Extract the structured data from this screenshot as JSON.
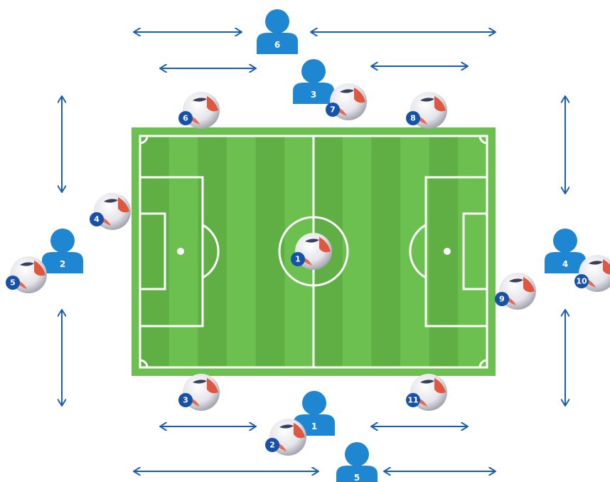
{
  "players": [
    {
      "label": "1"
    },
    {
      "label": "2"
    },
    {
      "label": "3"
    },
    {
      "label": "4"
    },
    {
      "label": "5"
    },
    {
      "label": "6"
    }
  ],
  "balls": [
    {
      "label": "1"
    },
    {
      "label": "2"
    },
    {
      "label": "3"
    },
    {
      "label": "4"
    },
    {
      "label": "5"
    },
    {
      "label": "6"
    },
    {
      "label": "7"
    },
    {
      "label": "8"
    },
    {
      "label": "9"
    },
    {
      "label": "10"
    },
    {
      "label": "11"
    }
  ]
}
